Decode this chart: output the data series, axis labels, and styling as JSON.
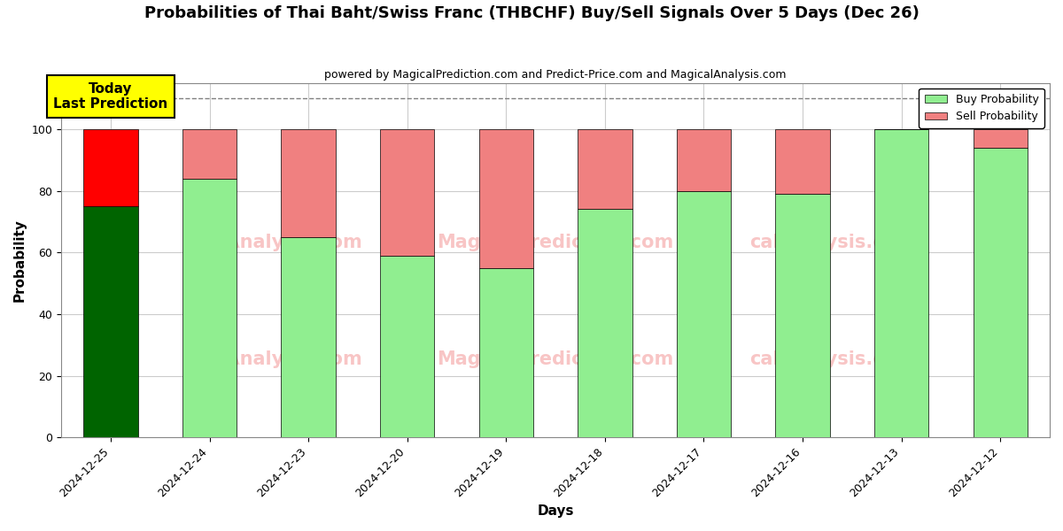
{
  "title": "Probabilities of Thai Baht/Swiss Franc (THBCHF) Buy/Sell Signals Over 5 Days (Dec 26)",
  "subtitle": "powered by MagicalPrediction.com and Predict-Price.com and MagicalAnalysis.com",
  "xlabel": "Days",
  "ylabel": "Probability",
  "dates": [
    "2024-12-25",
    "2024-12-24",
    "2024-12-23",
    "2024-12-20",
    "2024-12-19",
    "2024-12-18",
    "2024-12-17",
    "2024-12-16",
    "2024-12-13",
    "2024-12-12"
  ],
  "buy_values": [
    75,
    84,
    65,
    59,
    55,
    74,
    80,
    79,
    100,
    94
  ],
  "sell_values": [
    25,
    16,
    35,
    41,
    45,
    26,
    20,
    21,
    0,
    6
  ],
  "bar_colors_buy_today": "#006400",
  "bar_colors_buy_rest": "#90EE90",
  "bar_colors_sell_today": "#FF0000",
  "bar_colors_sell_rest": "#F08080",
  "dashed_line_y": 110,
  "ylim": [
    0,
    115
  ],
  "yticks": [
    0,
    20,
    40,
    60,
    80,
    100
  ],
  "legend_buy_label": "Buy Probability",
  "legend_sell_label": "Sell Probability",
  "today_label": "Today\nLast Prediction",
  "watermark_texts": [
    "calAnalysis.com",
    "MagicalPrediction.com",
    "calAnalysis.com",
    "MagicalPrediction.com",
    "calAnalysis.com",
    "MagicalPrediction.com"
  ],
  "background_color": "#ffffff",
  "grid_color": "#cccccc"
}
